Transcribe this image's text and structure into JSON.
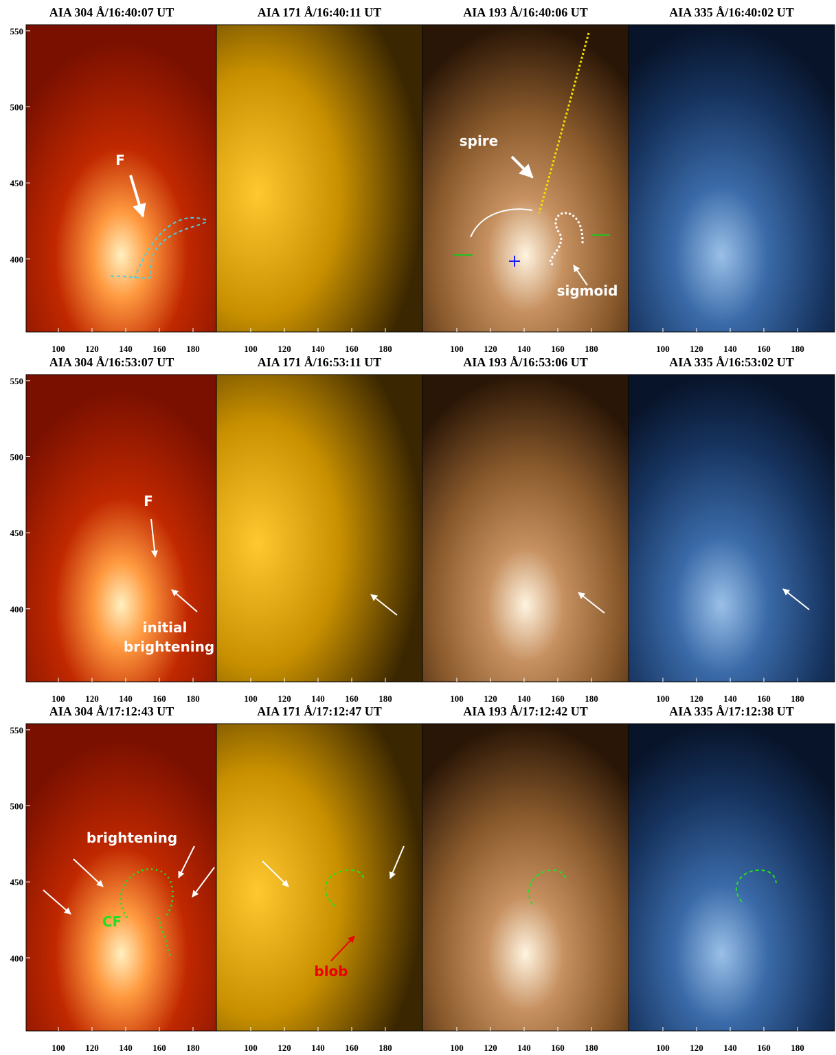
{
  "figure": {
    "x_ticks": [
      100,
      120,
      140,
      160,
      180
    ],
    "y_ticks": [
      550,
      500,
      450,
      400
    ],
    "xlim": [
      80,
      202
    ],
    "ylim": [
      352,
      554
    ],
    "rows": [
      {
        "panels": [
          {
            "title": "AIA 304 Å/16:40:07 UT",
            "annotations": [
              "F"
            ]
          },
          {
            "title": "AIA 171 Å/16:40:11 UT",
            "annotations": []
          },
          {
            "title": "AIA 193 Å/16:40:06 UT",
            "annotations": [
              "spire",
              "sigmoid"
            ]
          },
          {
            "title": "AIA 335 Å/16:40:02 UT",
            "annotations": []
          }
        ]
      },
      {
        "panels": [
          {
            "title": "AIA 304 Å/16:53:07 UT",
            "annotations": [
              "F",
              "initial",
              "brightening"
            ]
          },
          {
            "title": "AIA 171 Å/16:53:11 UT",
            "annotations": []
          },
          {
            "title": "AIA 193 Å/16:53:06 UT",
            "annotations": []
          },
          {
            "title": "AIA 335 Å/16:53:02 UT",
            "annotations": []
          }
        ]
      },
      {
        "panels": [
          {
            "title": "AIA 304 Å/17:12:43 UT",
            "annotations": [
              "brightening",
              "CF"
            ]
          },
          {
            "title": "AIA 171 Å/17:12:47 UT",
            "annotations": [
              "blob"
            ]
          },
          {
            "title": "AIA 193 Å/17:12:42 UT",
            "annotations": []
          },
          {
            "title": "AIA 335 Å/17:12:38 UT",
            "annotations": []
          }
        ]
      }
    ]
  }
}
